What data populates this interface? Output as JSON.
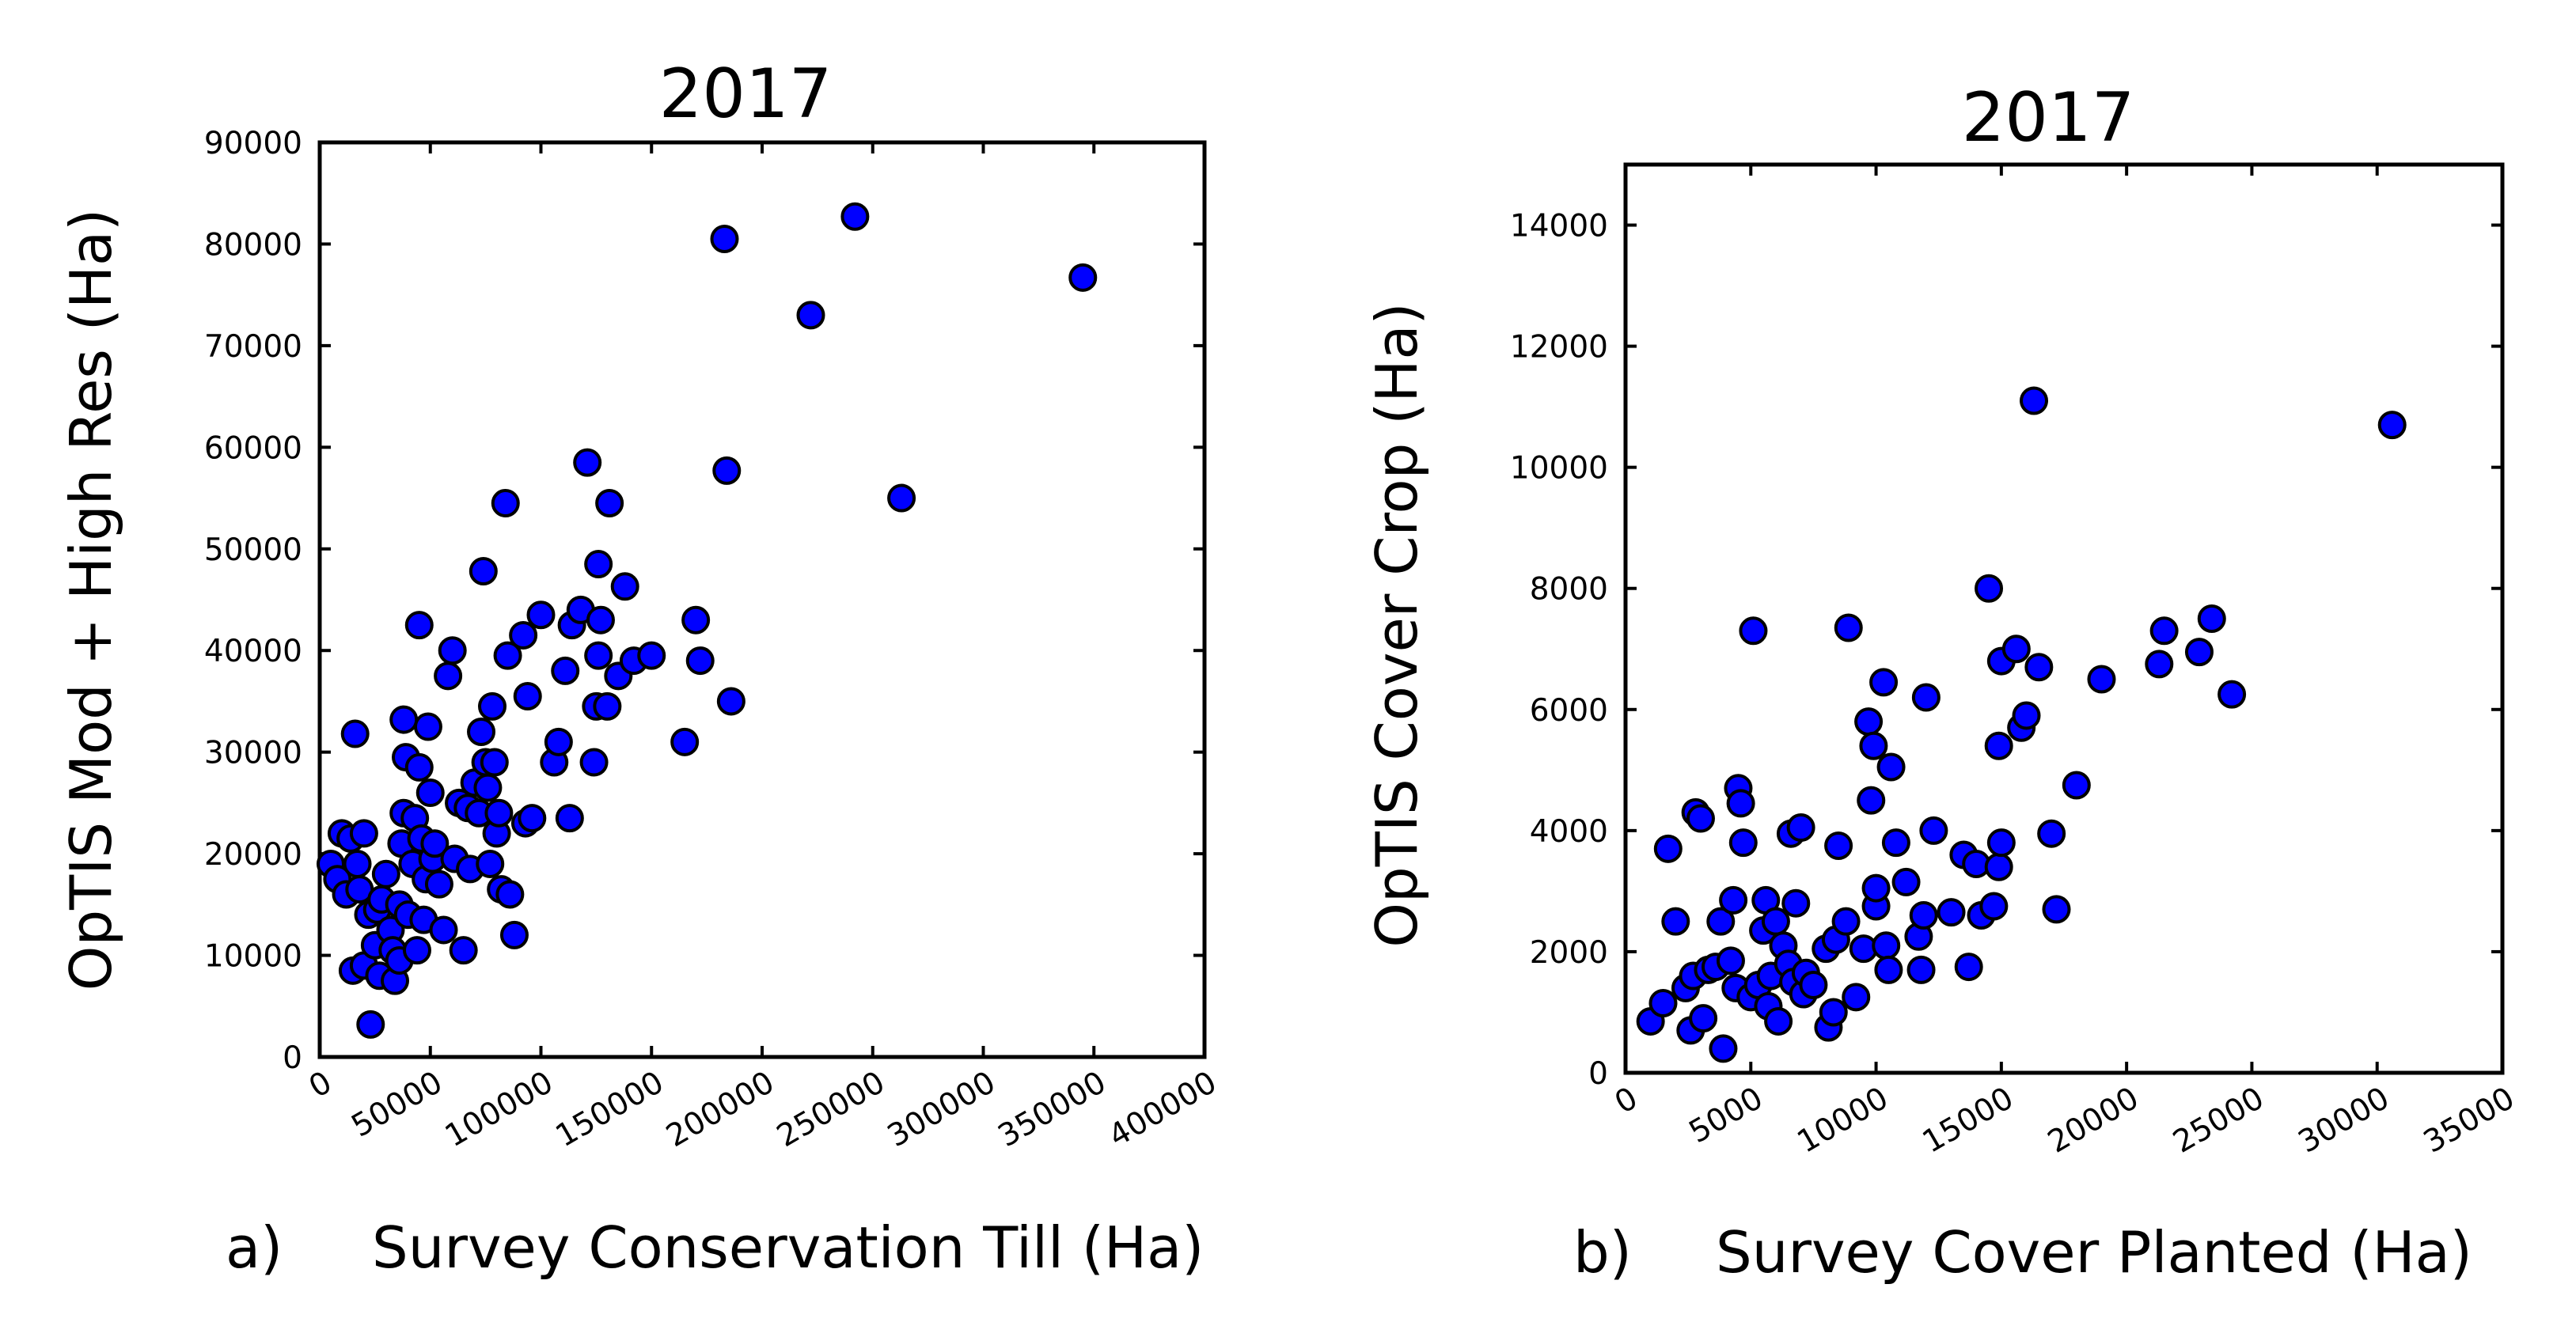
{
  "chart_data": [
    {
      "type": "scatter",
      "panel": "a)",
      "title": "2017",
      "xlabel": "Survey Conservation Till (Ha)",
      "ylabel": "OpTIS Mod + High Res (Ha)",
      "xlim": [
        0,
        400000
      ],
      "ylim": [
        0,
        90000
      ],
      "xticks": [
        0,
        50000,
        100000,
        150000,
        200000,
        250000,
        300000,
        350000,
        400000
      ],
      "yticks": [
        0,
        10000,
        20000,
        30000,
        40000,
        50000,
        60000,
        70000,
        80000,
        90000
      ],
      "xtick_labels": [
        "0",
        "50000",
        "100000",
        "150000",
        "200000",
        "250000",
        "300000",
        "350000",
        "400000"
      ],
      "ytick_labels": [
        "0",
        "10000",
        "20000",
        "30000",
        "40000",
        "50000",
        "60000",
        "70000",
        "80000",
        "90000"
      ],
      "marker_color": "#0000ff",
      "points": [
        [
          5000,
          19000
        ],
        [
          8000,
          17500
        ],
        [
          10000,
          22000
        ],
        [
          12000,
          16000
        ],
        [
          14000,
          21500
        ],
        [
          15000,
          8500
        ],
        [
          16000,
          31800
        ],
        [
          17000,
          19000
        ],
        [
          18000,
          16500
        ],
        [
          20000,
          22000
        ],
        [
          20000,
          9000
        ],
        [
          22000,
          14000
        ],
        [
          23000,
          3200
        ],
        [
          25000,
          11000
        ],
        [
          26000,
          14500
        ],
        [
          27000,
          8000
        ],
        [
          28000,
          15500
        ],
        [
          30000,
          18000
        ],
        [
          32000,
          12500
        ],
        [
          33000,
          10500
        ],
        [
          34000,
          7500
        ],
        [
          36000,
          15000
        ],
        [
          36000,
          9500
        ],
        [
          37000,
          21000
        ],
        [
          38000,
          24000
        ],
        [
          38000,
          33200
        ],
        [
          39000,
          29500
        ],
        [
          40000,
          14000
        ],
        [
          42000,
          19000
        ],
        [
          43000,
          23500
        ],
        [
          44000,
          10500
        ],
        [
          45000,
          42500
        ],
        [
          45000,
          28500
        ],
        [
          46000,
          21500
        ],
        [
          47000,
          13500
        ],
        [
          48000,
          17500
        ],
        [
          49000,
          32500
        ],
        [
          50000,
          26000
        ],
        [
          51000,
          19500
        ],
        [
          52000,
          21000
        ],
        [
          54000,
          17000
        ],
        [
          56000,
          12500
        ],
        [
          58000,
          37500
        ],
        [
          60000,
          40000
        ],
        [
          61000,
          19500
        ],
        [
          63000,
          25000
        ],
        [
          65000,
          10500
        ],
        [
          67000,
          24500
        ],
        [
          68000,
          18500
        ],
        [
          70000,
          27000
        ],
        [
          72000,
          24000
        ],
        [
          73000,
          32000
        ],
        [
          74000,
          47800
        ],
        [
          75000,
          29000
        ],
        [
          76000,
          26500
        ],
        [
          77000,
          19000
        ],
        [
          78000,
          34500
        ],
        [
          79000,
          29000
        ],
        [
          80000,
          22000
        ],
        [
          81000,
          24000
        ],
        [
          82000,
          16500
        ],
        [
          84000,
          54500
        ],
        [
          85000,
          39500
        ],
        [
          86000,
          16000
        ],
        [
          88000,
          12000
        ],
        [
          92000,
          41500
        ],
        [
          93000,
          23000
        ],
        [
          94000,
          35500
        ],
        [
          96000,
          23500
        ],
        [
          100000,
          43500
        ],
        [
          106000,
          29000
        ],
        [
          108000,
          31000
        ],
        [
          111000,
          38000
        ],
        [
          113000,
          23500
        ],
        [
          114000,
          42500
        ],
        [
          118000,
          44000
        ],
        [
          121000,
          58500
        ],
        [
          124000,
          29000
        ],
        [
          125000,
          34500
        ],
        [
          126000,
          39500
        ],
        [
          126000,
          48500
        ],
        [
          127000,
          43000
        ],
        [
          130000,
          34500
        ],
        [
          131000,
          54500
        ],
        [
          135000,
          37500
        ],
        [
          138000,
          46300
        ],
        [
          142000,
          39000
        ],
        [
          150000,
          39500
        ],
        [
          165000,
          31000
        ],
        [
          170000,
          43000
        ],
        [
          172000,
          39000
        ],
        [
          183000,
          80500
        ],
        [
          184000,
          57700
        ],
        [
          186000,
          35000
        ],
        [
          222000,
          73000
        ],
        [
          242000,
          82700
        ],
        [
          263000,
          55000
        ],
        [
          345000,
          76700
        ]
      ]
    },
    {
      "type": "scatter",
      "panel": "b)",
      "title": "2017",
      "xlabel": "Survey Cover Planted (Ha)",
      "ylabel": "OpTIS Cover Crop (Ha)",
      "xlim": [
        0,
        35000
      ],
      "ylim": [
        0,
        15000
      ],
      "xticks": [
        0,
        5000,
        10000,
        15000,
        20000,
        25000,
        30000,
        35000
      ],
      "yticks": [
        0,
        2000,
        4000,
        6000,
        8000,
        10000,
        12000,
        14000
      ],
      "xtick_labels": [
        "0",
        "5000",
        "10000",
        "15000",
        "20000",
        "25000",
        "30000",
        "35000"
      ],
      "ytick_labels": [
        "0",
        "2000",
        "4000",
        "6000",
        "8000",
        "10000",
        "12000",
        "14000"
      ],
      "marker_color": "#0000ff",
      "points": [
        [
          1000,
          850
        ],
        [
          1500,
          1150
        ],
        [
          1700,
          3700
        ],
        [
          2000,
          2500
        ],
        [
          2400,
          1400
        ],
        [
          2600,
          700
        ],
        [
          2700,
          1600
        ],
        [
          2800,
          4300
        ],
        [
          3000,
          4200
        ],
        [
          3100,
          900
        ],
        [
          3300,
          1700
        ],
        [
          3600,
          1750
        ],
        [
          3800,
          2500
        ],
        [
          3900,
          400
        ],
        [
          4200,
          1850
        ],
        [
          4300,
          2850
        ],
        [
          4400,
          1400
        ],
        [
          4500,
          4700
        ],
        [
          4600,
          4450
        ],
        [
          4700,
          3800
        ],
        [
          5000,
          1250
        ],
        [
          5100,
          7300
        ],
        [
          5300,
          1450
        ],
        [
          5500,
          2350
        ],
        [
          5600,
          2850
        ],
        [
          5700,
          1100
        ],
        [
          5800,
          1600
        ],
        [
          6000,
          2500
        ],
        [
          6100,
          850
        ],
        [
          6300,
          2100
        ],
        [
          6500,
          1800
        ],
        [
          6600,
          3950
        ],
        [
          6700,
          1500
        ],
        [
          6800,
          2800
        ],
        [
          7000,
          4050
        ],
        [
          7100,
          1300
        ],
        [
          7200,
          1650
        ],
        [
          7500,
          1450
        ],
        [
          8000,
          2050
        ],
        [
          8100,
          750
        ],
        [
          8300,
          1000
        ],
        [
          8400,
          2200
        ],
        [
          8500,
          3750
        ],
        [
          8800,
          2500
        ],
        [
          8900,
          7350
        ],
        [
          9200,
          1250
        ],
        [
          9500,
          2050
        ],
        [
          9700,
          5800
        ],
        [
          9800,
          4500
        ],
        [
          9900,
          5400
        ],
        [
          10000,
          2750
        ],
        [
          10000,
          3050
        ],
        [
          10300,
          6450
        ],
        [
          10400,
          2100
        ],
        [
          10500,
          1700
        ],
        [
          10600,
          5050
        ],
        [
          10800,
          3800
        ],
        [
          11200,
          3150
        ],
        [
          11700,
          2250
        ],
        [
          11800,
          1700
        ],
        [
          11900,
          2600
        ],
        [
          12000,
          6200
        ],
        [
          12300,
          4000
        ],
        [
          13000,
          2650
        ],
        [
          13500,
          3600
        ],
        [
          13700,
          1750
        ],
        [
          14000,
          3450
        ],
        [
          14200,
          2600
        ],
        [
          14500,
          8000
        ],
        [
          14700,
          2750
        ],
        [
          14900,
          5400
        ],
        [
          14900,
          3400
        ],
        [
          15000,
          6800
        ],
        [
          15000,
          3800
        ],
        [
          15600,
          7000
        ],
        [
          15800,
          5700
        ],
        [
          16000,
          5900
        ],
        [
          16300,
          11100
        ],
        [
          16500,
          6700
        ],
        [
          17000,
          3950
        ],
        [
          17200,
          2700
        ],
        [
          18000,
          4750
        ],
        [
          19000,
          6500
        ],
        [
          21300,
          6750
        ],
        [
          21500,
          7300
        ],
        [
          22900,
          6950
        ],
        [
          23400,
          7500
        ],
        [
          24200,
          6250
        ],
        [
          30600,
          10700
        ]
      ]
    }
  ]
}
